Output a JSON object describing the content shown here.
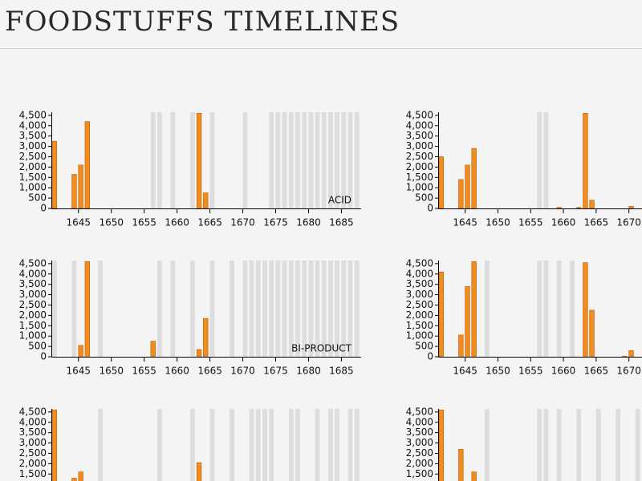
{
  "header": {
    "title": "FOODSTUFFS TIMELINES"
  },
  "chart_data": [
    {
      "type": "bar",
      "label": "ACID",
      "color": "#f28c1e",
      "shade_color": "#dddddd",
      "x": [
        1641,
        1644,
        1645,
        1646,
        1663,
        1664
      ],
      "values": [
        3250,
        1650,
        2100,
        4200,
        4600,
        750
      ],
      "shaded_years": [
        1656,
        1657,
        1659,
        1662,
        1665,
        1670,
        1674,
        1675,
        1676,
        1677,
        1678,
        1679,
        1680,
        1681,
        1682,
        1683,
        1684,
        1685,
        1686,
        1687
      ],
      "xlim": [
        1641,
        1688
      ],
      "ylim": [
        0,
        4650
      ],
      "xticks": [
        1645,
        1650,
        1655,
        1660,
        1665,
        1670,
        1675,
        1680,
        1685
      ],
      "yticks": [
        0,
        500,
        {
          "value": 1000,
          "label": "1,000"
        },
        {
          "value": 1500,
          "label": "1,500"
        },
        {
          "value": 2000,
          "label": "2,000"
        },
        {
          "value": 2500,
          "label": "2,500"
        },
        {
          "value": 3000,
          "label": "3,000"
        },
        {
          "value": 3500,
          "label": "3,500"
        },
        {
          "value": 4000,
          "label": "4,000"
        },
        {
          "value": 4500,
          "label": "4,500"
        }
      ]
    },
    {
      "type": "bar",
      "color": "#f28c1e",
      "shade_color": "#dddddd",
      "x": [
        1641,
        1644,
        1645,
        1646,
        1659,
        1662,
        1663,
        1664,
        1670
      ],
      "values": [
        2500,
        1400,
        2100,
        2900,
        50,
        50,
        4600,
        400,
        100
      ],
      "shaded_years": [
        1656,
        1657
      ],
      "xlim": [
        1641,
        1672
      ],
      "ylim": [
        0,
        4650
      ],
      "xticks": [
        1645,
        1650,
        1655,
        1660,
        1665,
        1670
      ],
      "yticks": [
        0,
        500,
        {
          "value": 1000,
          "label": "1,000"
        },
        {
          "value": 1500,
          "label": "1,500"
        },
        {
          "value": 2000,
          "label": "2,000"
        },
        {
          "value": 2500,
          "label": "2,500"
        },
        {
          "value": 3000,
          "label": "3,000"
        },
        {
          "value": 3500,
          "label": "3,500"
        },
        {
          "value": 4000,
          "label": "4,000"
        },
        {
          "value": 4500,
          "label": "4,500"
        }
      ]
    },
    {
      "type": "bar",
      "label": "BI-PRODUCT",
      "color": "#f28c1e",
      "shade_color": "#dddddd",
      "x": [
        1645,
        1646,
        1656,
        1663,
        1664
      ],
      "values": [
        550,
        4600,
        750,
        350,
        1850
      ],
      "shaded_years": [
        1641,
        1644,
        1648,
        1657,
        1659,
        1662,
        1665,
        1668,
        1670,
        1671,
        1672,
        1673,
        1674,
        1675,
        1676,
        1677,
        1678,
        1679,
        1680,
        1681,
        1682,
        1683,
        1684,
        1685,
        1686,
        1687
      ],
      "xlim": [
        1641,
        1688
      ],
      "ylim": [
        0,
        4650
      ],
      "xticks": [
        1645,
        1650,
        1655,
        1660,
        1665,
        1670,
        1675,
        1680,
        1685
      ],
      "yticks": [
        0,
        500,
        {
          "value": 1000,
          "label": "1,000"
        },
        {
          "value": 1500,
          "label": "1,500"
        },
        {
          "value": 2000,
          "label": "2,000"
        },
        {
          "value": 2500,
          "label": "2,500"
        },
        {
          "value": 3000,
          "label": "3,000"
        },
        {
          "value": 3500,
          "label": "3,500"
        },
        {
          "value": 4000,
          "label": "4,000"
        },
        {
          "value": 4500,
          "label": "4,500"
        }
      ]
    },
    {
      "type": "bar",
      "color": "#f28c1e",
      "shade_color": "#dddddd",
      "x": [
        1641,
        1644,
        1645,
        1646,
        1663,
        1664,
        1669,
        1670
      ],
      "values": [
        4100,
        1050,
        3400,
        4600,
        4550,
        2250,
        30,
        300
      ],
      "shaded_years": [
        1648,
        1656,
        1657,
        1659,
        1661
      ],
      "xlim": [
        1641,
        1672
      ],
      "ylim": [
        0,
        4650
      ],
      "xticks": [
        1645,
        1650,
        1655,
        1660,
        1665,
        1670
      ],
      "yticks": [
        0,
        500,
        {
          "value": 1000,
          "label": "1,000"
        },
        {
          "value": 1500,
          "label": "1,500"
        },
        {
          "value": 2000,
          "label": "2,000"
        },
        {
          "value": 2500,
          "label": "2,500"
        },
        {
          "value": 3000,
          "label": "3,000"
        },
        {
          "value": 3500,
          "label": "3,500"
        },
        {
          "value": 4000,
          "label": "4,000"
        },
        {
          "value": 4500,
          "label": "4,500"
        }
      ]
    },
    {
      "type": "bar",
      "color": "#f28c1e",
      "shade_color": "#dddddd",
      "x": [
        1641,
        1644,
        1645,
        1663
      ],
      "values": [
        4600,
        1300,
        1600,
        2050
      ],
      "shaded_years": [
        1648,
        1657,
        1662,
        1665,
        1668,
        1671,
        1672,
        1673,
        1674,
        1677,
        1678,
        1681,
        1683,
        1684,
        1686,
        1687
      ],
      "xlim": [
        1641,
        1688
      ],
      "ylim": [
        0,
        4650
      ],
      "yticks": [
        {
          "value": 1500,
          "label": "1,500"
        },
        {
          "value": 2000,
          "label": "2,000"
        },
        {
          "value": 2500,
          "label": "2,500"
        },
        {
          "value": 3000,
          "label": "3,000"
        },
        {
          "value": 3500,
          "label": "3,500"
        },
        {
          "value": 4000,
          "label": "4,000"
        },
        {
          "value": 4500,
          "label": "4,500"
        }
      ]
    },
    {
      "type": "bar",
      "color": "#f28c1e",
      "shade_color": "#dddddd",
      "x": [
        1641,
        1644,
        1646
      ],
      "values": [
        4600,
        2700,
        1600
      ],
      "shaded_years": [
        1648,
        1656,
        1657,
        1659,
        1662,
        1665,
        1668,
        1671
      ],
      "xlim": [
        1641,
        1672
      ],
      "ylim": [
        0,
        4650
      ],
      "yticks": [
        {
          "value": 1500,
          "label": "1,500"
        },
        {
          "value": 2000,
          "label": "2,000"
        },
        {
          "value": 2500,
          "label": "2,500"
        },
        {
          "value": 3000,
          "label": "3,000"
        },
        {
          "value": 3500,
          "label": "3,500"
        },
        {
          "value": 4000,
          "label": "4,000"
        },
        {
          "value": 4500,
          "label": "4,500"
        }
      ]
    }
  ]
}
